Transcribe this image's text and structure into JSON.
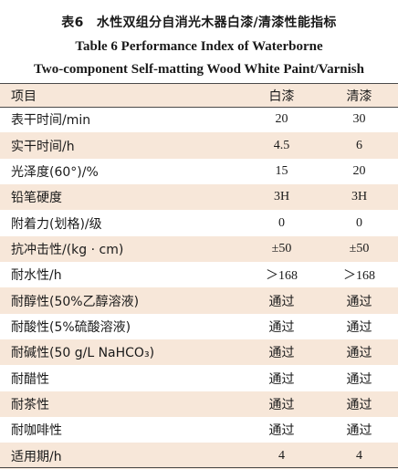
{
  "caption": {
    "cn": "表6　水性双组分自消光木器白漆/清漆性能指标",
    "en_line1": "Table 6    Performance Index of Waterborne",
    "en_line2": "Two-component Self-matting Wood White Paint/Varnish"
  },
  "table": {
    "headers": [
      "项目",
      "白漆",
      "清漆"
    ],
    "rows": [
      {
        "property": "表干时间/min",
        "white": "20",
        "varnish": "30",
        "shaded": false
      },
      {
        "property": "实干时间/h",
        "white": "4.5",
        "varnish": "6",
        "shaded": true
      },
      {
        "property": "光泽度(60°)/%",
        "white": "15",
        "varnish": "20",
        "shaded": false
      },
      {
        "property": "铅笔硬度",
        "white": "3H",
        "varnish": "3H",
        "shaded": true
      },
      {
        "property": "附着力(划格)/级",
        "white": "0",
        "varnish": "0",
        "shaded": false
      },
      {
        "property": "抗冲击性/(kg · cm)",
        "white": "±50",
        "varnish": "±50",
        "shaded": true
      },
      {
        "property": "耐水性/h",
        "white": "＞168",
        "varnish": "＞168",
        "shaded": false
      },
      {
        "property": "耐醇性(50%乙醇溶液)",
        "white": "通过",
        "varnish": "通过",
        "shaded": true
      },
      {
        "property": "耐酸性(5%硫酸溶液)",
        "white": "通过",
        "varnish": "通过",
        "shaded": false
      },
      {
        "property": "耐碱性(50 g/L NaHCO₃)",
        "white": "通过",
        "varnish": "通过",
        "shaded": true
      },
      {
        "property": "耐醋性",
        "white": "通过",
        "varnish": "通过",
        "shaded": false
      },
      {
        "property": "耐茶性",
        "white": "通过",
        "varnish": "通过",
        "shaded": true
      },
      {
        "property": "耐咖啡性",
        "white": "通过",
        "varnish": "通过",
        "shaded": false
      },
      {
        "property": "适用期/h",
        "white": "4",
        "varnish": "4",
        "shaded": true
      }
    ]
  }
}
